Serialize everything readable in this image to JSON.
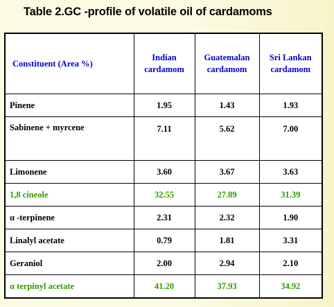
{
  "title": "Table 2.GC -profile of volatile oil of cardamoms",
  "colors": {
    "header": "#0000cc",
    "highlight": "#339900",
    "text": "#000000",
    "background": "#fbfbe4"
  },
  "table": {
    "headers": [
      [
        "Constituent (Area %)"
      ],
      [
        "Indian",
        "cardamom"
      ],
      [
        "Guatemalan",
        "cardamom"
      ],
      [
        "Sri Lankan",
        "cardamom"
      ]
    ],
    "rows": [
      {
        "name": "Pinene",
        "values": [
          "1.95",
          "1.43",
          "1.93"
        ],
        "highlight": false,
        "tall": false
      },
      {
        "name": "Sabinene + myrcene",
        "values": [
          "7.11",
          "5.62",
          "7.00"
        ],
        "highlight": false,
        "tall": true
      },
      {
        "name": "Limonene",
        "values": [
          "3.60",
          "3.67",
          "3.63"
        ],
        "highlight": false,
        "tall": false
      },
      {
        "name": "1,8 cineole",
        "values": [
          "32.55",
          "27.89",
          "31.39"
        ],
        "highlight": true,
        "tall": false
      },
      {
        "name": "α -terpinene",
        "values": [
          "2.31",
          "2.32",
          "1.90"
        ],
        "highlight": false,
        "tall": false
      },
      {
        "name": "Linalyl acetate",
        "values": [
          "0.79",
          "1.81",
          "3.31"
        ],
        "highlight": false,
        "tall": false
      },
      {
        "name": "Geraniol",
        "values": [
          "2.00",
          "2.94",
          "2.10"
        ],
        "highlight": false,
        "tall": false
      },
      {
        "name": "α terpinyl acetate",
        "values": [
          "41.20",
          "37.93",
          "34.92"
        ],
        "highlight": true,
        "tall": false
      }
    ]
  }
}
